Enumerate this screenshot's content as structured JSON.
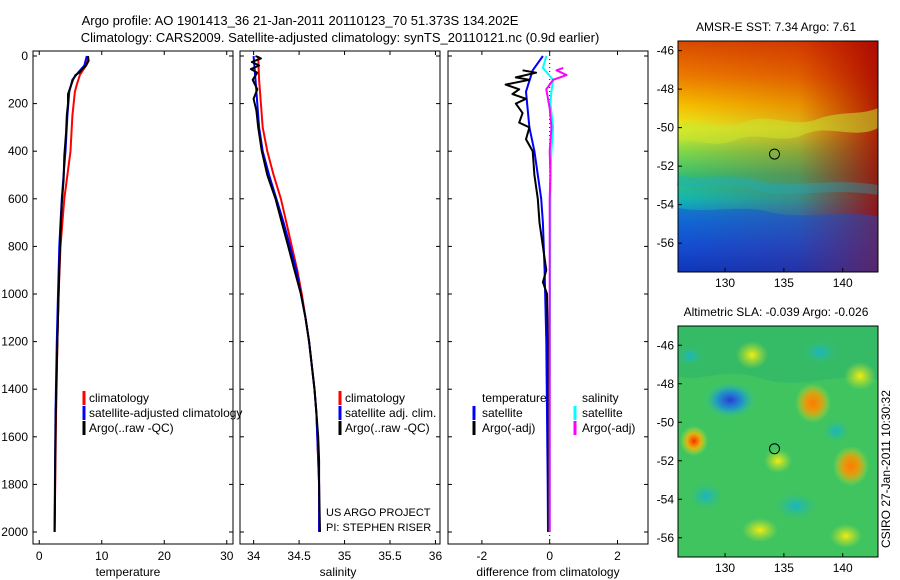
{
  "figure": {
    "title_line1": "Argo profile: AO 1901413_36 21-Jan-2011 20110123_70 51.373S 134.202E",
    "title_line2": "Climatology: CARS2009. Satellite-adjusted climatology: synTS_20110121.nc (0.9d earlier)",
    "credit": "CSIRO 27-Jan-2011 10:30:32"
  },
  "colors": {
    "climatology": "#ff0000",
    "satellite": "#0000ff",
    "argo": "#000000",
    "salinity_satellite": "#00ffff",
    "salinity_argo": "#ff00ff"
  },
  "chart_data": [
    {
      "id": "temperature",
      "type": "line",
      "xlabel": "temperature",
      "ylabel": "",
      "xlim": [
        -1,
        31
      ],
      "ylim": [
        2050,
        0
      ],
      "xticks": [
        0,
        10,
        20,
        30
      ],
      "yticks": [
        0,
        200,
        400,
        600,
        800,
        1000,
        1200,
        1400,
        1600,
        1800,
        2000
      ],
      "legend": [
        "climatology",
        "satellite-adjusted climatology",
        "Argo(..raw -QC)"
      ],
      "series": [
        {
          "name": "climatology",
          "color_key": "climatology",
          "points": [
            [
              7.7,
              0
            ],
            [
              7.5,
              40
            ],
            [
              6.5,
              80
            ],
            [
              6.0,
              120
            ],
            [
              5.7,
              150
            ],
            [
              5.3,
              250
            ],
            [
              5.0,
              400
            ],
            [
              4.5,
              500
            ],
            [
              4.0,
              600
            ],
            [
              3.7,
              700
            ],
            [
              3.4,
              800
            ],
            [
              3.1,
              1000
            ],
            [
              2.9,
              1200
            ],
            [
              2.7,
              1500
            ],
            [
              2.55,
              1800
            ],
            [
              2.45,
              2000
            ]
          ]
        },
        {
          "name": "satellite-adjusted climatology",
          "color_key": "satellite",
          "points": [
            [
              7.6,
              0
            ],
            [
              7.2,
              40
            ],
            [
              6.2,
              70
            ],
            [
              5.3,
              100
            ],
            [
              4.8,
              150
            ],
            [
              4.5,
              250
            ],
            [
              4.2,
              400
            ],
            [
              3.9,
              500
            ],
            [
              3.6,
              600
            ],
            [
              3.4,
              700
            ],
            [
              3.2,
              800
            ],
            [
              3.0,
              1000
            ],
            [
              2.8,
              1200
            ],
            [
              2.6,
              1500
            ],
            [
              2.5,
              1800
            ],
            [
              2.45,
              2000
            ]
          ]
        },
        {
          "name": "Argo(..raw -QC)",
          "color_key": "argo",
          "points": [
            [
              7.8,
              0
            ],
            [
              7.9,
              20
            ],
            [
              7.5,
              40
            ],
            [
              6.9,
              55
            ],
            [
              6.4,
              70
            ],
            [
              5.8,
              80
            ],
            [
              5.4,
              100
            ],
            [
              5.0,
              130
            ],
            [
              4.6,
              160
            ],
            [
              4.6,
              200
            ],
            [
              4.4,
              250
            ],
            [
              4.3,
              320
            ],
            [
              4.0,
              420
            ],
            [
              3.9,
              520
            ],
            [
              3.6,
              620
            ],
            [
              3.4,
              750
            ],
            [
              3.2,
              900
            ],
            [
              3.0,
              1100
            ],
            [
              2.8,
              1300
            ],
            [
              2.65,
              1500
            ],
            [
              2.55,
              1700
            ],
            [
              2.5,
              1900
            ],
            [
              2.45,
              2000
            ]
          ]
        }
      ]
    },
    {
      "id": "salinity",
      "type": "line",
      "xlabel": "salinity",
      "ylabel": "",
      "xlim": [
        33.85,
        36.05
      ],
      "ylim": [
        2050,
        0
      ],
      "xticks": [
        34,
        34.5,
        35,
        35.5,
        36
      ],
      "xticklabels": [
        "34",
        "34.5",
        "35",
        "35.5",
        "36"
      ],
      "legend": [
        "climatology",
        "satellite adj. clim.",
        "Argo(..raw -QC)"
      ],
      "annotation_lines": [
        "US ARGO PROJECT",
        "PI: STEPHEN RISER"
      ],
      "series": [
        {
          "name": "climatology",
          "color_key": "climatology",
          "points": [
            [
              34.05,
              0
            ],
            [
              34.06,
              100
            ],
            [
              34.08,
              200
            ],
            [
              34.1,
              300
            ],
            [
              34.15,
              400
            ],
            [
              34.22,
              500
            ],
            [
              34.3,
              600
            ],
            [
              34.36,
              700
            ],
            [
              34.42,
              800
            ],
            [
              34.48,
              900
            ],
            [
              34.53,
              1000
            ],
            [
              34.57,
              1100
            ],
            [
              34.61,
              1200
            ],
            [
              34.64,
              1300
            ],
            [
              34.67,
              1400
            ],
            [
              34.69,
              1500
            ],
            [
              34.7,
              1600
            ],
            [
              34.71,
              1700
            ],
            [
              34.72,
              1800
            ],
            [
              34.72,
              2000
            ]
          ]
        },
        {
          "name": "satellite adj. clim.",
          "color_key": "satellite",
          "points": [
            [
              34.0,
              0
            ],
            [
              34.02,
              100
            ],
            [
              34.04,
              200
            ],
            [
              34.06,
              300
            ],
            [
              34.1,
              400
            ],
            [
              34.17,
              500
            ],
            [
              34.25,
              600
            ],
            [
              34.33,
              700
            ],
            [
              34.4,
              800
            ],
            [
              34.47,
              900
            ],
            [
              34.52,
              1000
            ],
            [
              34.57,
              1100
            ],
            [
              34.61,
              1200
            ],
            [
              34.64,
              1300
            ],
            [
              34.67,
              1400
            ],
            [
              34.69,
              1500
            ],
            [
              34.7,
              1600
            ],
            [
              34.71,
              1700
            ],
            [
              34.72,
              1800
            ],
            [
              34.72,
              2000
            ]
          ]
        },
        {
          "name": "Argo(..raw -QC)",
          "color_key": "argo",
          "points": [
            [
              34.02,
              0
            ],
            [
              34.08,
              10
            ],
            [
              33.98,
              25
            ],
            [
              34.06,
              40
            ],
            [
              33.97,
              55
            ],
            [
              34.04,
              70
            ],
            [
              33.99,
              100
            ],
            [
              34.04,
              140
            ],
            [
              34.0,
              180
            ],
            [
              34.03,
              230
            ],
            [
              34.05,
              300
            ],
            [
              34.09,
              400
            ],
            [
              34.15,
              500
            ],
            [
              34.24,
              600
            ],
            [
              34.31,
              700
            ],
            [
              34.38,
              800
            ],
            [
              34.45,
              900
            ],
            [
              34.52,
              1000
            ],
            [
              34.57,
              1100
            ],
            [
              34.61,
              1200
            ],
            [
              34.64,
              1300
            ],
            [
              34.67,
              1400
            ],
            [
              34.69,
              1500
            ],
            [
              34.71,
              1600
            ],
            [
              34.72,
              1700
            ],
            [
              34.72,
              1800
            ],
            [
              34.73,
              2000
            ]
          ]
        }
      ]
    },
    {
      "id": "difference",
      "type": "line",
      "xlabel": "difference from climatology",
      "ylabel": "",
      "xlim": [
        -3,
        2.9
      ],
      "ylim": [
        2050,
        0
      ],
      "xticks": [
        -2,
        0,
        2
      ],
      "legend_titles": [
        "temperature",
        "salinity"
      ],
      "legend_temperature": [
        "satellite",
        "Argo(-adj)"
      ],
      "legend_salinity": [
        "satellite",
        "Argo(-adj)"
      ],
      "series": [
        {
          "name": "temperature satellite",
          "color_key": "satellite",
          "points": [
            [
              -0.2,
              0
            ],
            [
              -0.5,
              60
            ],
            [
              -0.7,
              150
            ],
            [
              -0.6,
              300
            ],
            [
              -0.45,
              400
            ],
            [
              -0.35,
              500
            ],
            [
              -0.25,
              600
            ],
            [
              -0.2,
              700
            ],
            [
              -0.15,
              900
            ],
            [
              -0.1,
              1200
            ],
            [
              -0.08,
              1500
            ],
            [
              -0.06,
              1800
            ],
            [
              -0.05,
              2000
            ]
          ]
        },
        {
          "name": "temperature Argo(-adj)",
          "color_key": "argo",
          "points": [
            [
              -0.8,
              60
            ],
            [
              -0.4,
              70
            ],
            [
              -1.0,
              90
            ],
            [
              -0.6,
              100
            ],
            [
              -1.3,
              120
            ],
            [
              -0.9,
              140
            ],
            [
              -1.1,
              160
            ],
            [
              -0.7,
              180
            ],
            [
              -1.0,
              200
            ],
            [
              -0.8,
              240
            ],
            [
              -0.9,
              280
            ],
            [
              -0.6,
              300
            ],
            [
              -0.7,
              350
            ],
            [
              -0.5,
              400
            ],
            [
              -0.45,
              500
            ],
            [
              -0.35,
              600
            ],
            [
              -0.3,
              700
            ],
            [
              -0.2,
              800
            ],
            [
              -0.15,
              850
            ],
            [
              -0.1,
              900
            ],
            [
              -0.2,
              950
            ],
            [
              -0.08,
              1000
            ],
            [
              -0.05,
              1200
            ],
            [
              -0.04,
              1500
            ],
            [
              -0.03,
              2000
            ]
          ]
        },
        {
          "name": "salinity satellite",
          "color_key": "salinity_satellite",
          "points": [
            [
              -0.1,
              0
            ],
            [
              -0.2,
              50
            ],
            [
              0.1,
              100
            ],
            [
              0.05,
              150
            ],
            [
              0.02,
              200
            ],
            [
              0.1,
              300
            ],
            [
              0.05,
              400
            ],
            [
              0.02,
              500
            ],
            [
              0.02,
              700
            ],
            [
              0.01,
              1000
            ],
            [
              0.0,
              1500
            ],
            [
              0.0,
              2000
            ]
          ]
        },
        {
          "name": "salinity Argo(-adj)",
          "color_key": "salinity_argo",
          "points": [
            [
              0.4,
              50
            ],
            [
              0.2,
              60
            ],
            [
              0.5,
              80
            ],
            [
              0.3,
              90
            ],
            [
              0.1,
              100
            ],
            [
              0.0,
              120
            ],
            [
              -0.1,
              140
            ],
            [
              -0.05,
              180
            ],
            [
              0.0,
              220
            ],
            [
              0.05,
              300
            ],
            [
              0.0,
              400
            ],
            [
              0.02,
              500
            ],
            [
              0.0,
              600
            ],
            [
              0.0,
              1000
            ],
            [
              0.0,
              2000
            ]
          ]
        }
      ]
    }
  ],
  "maps": [
    {
      "id": "sst",
      "title": "AMSR-E SST: 7.34 Argo: 7.61",
      "xticks": [
        130,
        135,
        140
      ],
      "yticks": [
        -46,
        -48,
        -50,
        -52,
        -54,
        -56
      ],
      "xlim": [
        126,
        143
      ],
      "ylim": [
        -57.5,
        -45.5
      ],
      "marker": {
        "lon": 134.202,
        "lat": -51.373
      }
    },
    {
      "id": "sla",
      "title": "Altimetric SLA: -0.039 Argo: -0.026",
      "xticks": [
        130,
        135,
        140
      ],
      "yticks": [
        -46,
        -48,
        -50,
        -52,
        -54,
        -56
      ],
      "xlim": [
        126,
        143
      ],
      "ylim": [
        -57,
        -45
      ],
      "marker": {
        "lon": 134.202,
        "lat": -51.373
      }
    }
  ]
}
